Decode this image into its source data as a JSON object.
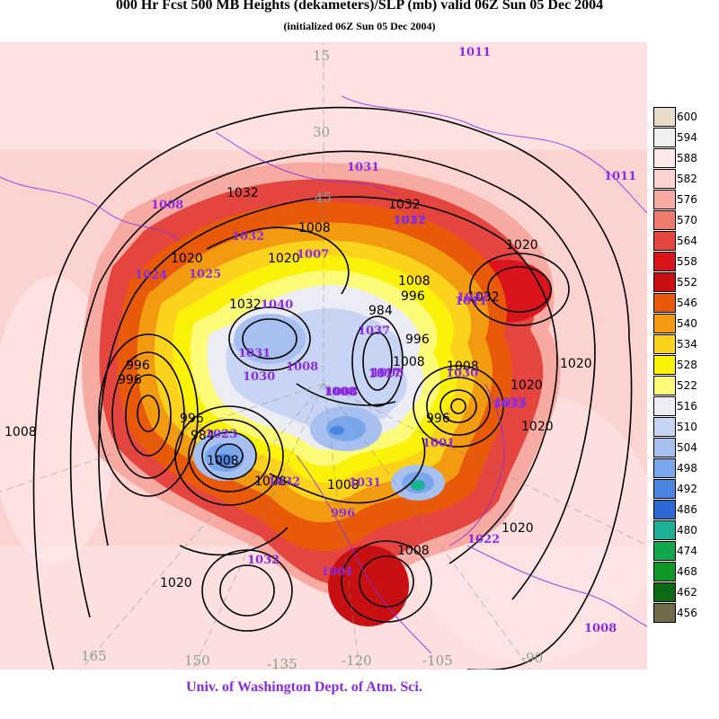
{
  "title": "000 Hr Fcst 500 MB Heights (dekameters)/SLP (mb) valid 06Z Sun 05 Dec 2004",
  "subtitle": "(initialized 06Z Sun 05 Dec 2004)",
  "credit": "Univ. of Washington Dept. of Atm. Sci.",
  "legend": {
    "levels": [
      "600",
      "594",
      "588",
      "582",
      "576",
      "570",
      "564",
      "558",
      "552",
      "546",
      "540",
      "534",
      "528",
      "522",
      "516",
      "510",
      "504",
      "498",
      "492",
      "486",
      "480",
      "474",
      "468",
      "462",
      "456"
    ],
    "colors": [
      "#e8dcc8",
      "#f0f0f0",
      "#fde8e8",
      "#fbd3d0",
      "#f7aaa2",
      "#ef7a6e",
      "#e4453e",
      "#d9141c",
      "#c80f12",
      "#e85a0a",
      "#f29a10",
      "#fbd21c",
      "#fbf20a",
      "#fbfb78",
      "#ececf4",
      "#c8d4f4",
      "#a8c0f0",
      "#7aa6ec",
      "#4a86e0",
      "#2a68d4",
      "#1cb096",
      "#10a84a",
      "#109826",
      "#0c6a14",
      "#6e6a4a"
    ]
  },
  "purple_labels": [
    "1011",
    "1011",
    "1008",
    "1031",
    "1032",
    "1032",
    "1024",
    "1025",
    "1011",
    "1007",
    "1040",
    "1008",
    "1037",
    "1008",
    "1032",
    "1031",
    "1030",
    "1008",
    "1017",
    "1033",
    "1031",
    "1033",
    "1001",
    "996",
    "1022",
    "1030",
    "1032",
    "1023",
    "1017",
    "1011",
    "1008",
    "1001",
    "1032",
    "1008"
  ],
  "black_labels": [
    "1032",
    "1008",
    "1032",
    "1020",
    "1032",
    "1008",
    "1020",
    "1008",
    "1032",
    "1020",
    "996",
    "984",
    "996",
    "1008",
    "1020",
    "996",
    "996",
    "1008",
    "984",
    "996",
    "996",
    "1008",
    "1020",
    "1008",
    "1020",
    "1008",
    "1020",
    "1020",
    "1008"
  ],
  "lon_labels": [
    "15",
    "30",
    "45",
    "165",
    "150",
    "-135",
    "-120",
    "-105",
    "-90"
  ]
}
